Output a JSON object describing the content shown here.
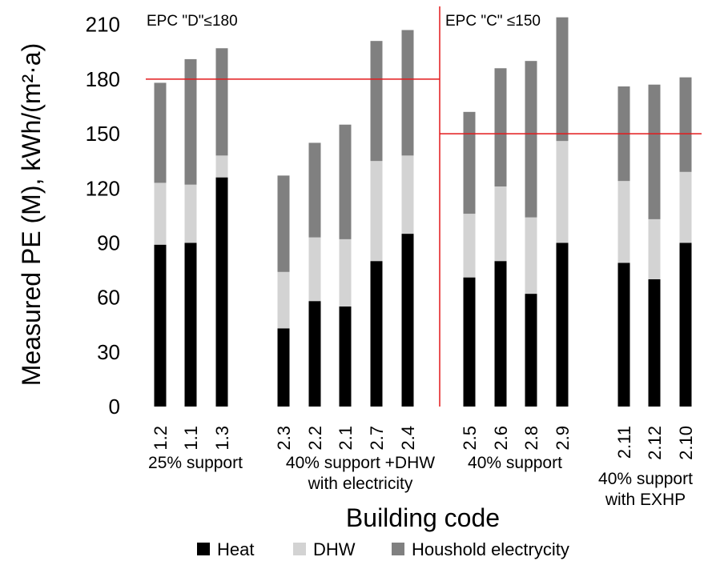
{
  "chart_data": {
    "type": "bar",
    "stacked": true,
    "ylabel": "Measured PE (M), kWh/(m²·a)",
    "xlabel": "Building code",
    "ylim": [
      0,
      210
    ],
    "yticks": [
      0,
      30,
      60,
      90,
      120,
      150,
      180,
      210
    ],
    "grid": false,
    "legend_position": "bottom",
    "categories": [
      "1.2",
      "1.1",
      "1.3",
      "2.3",
      "2.2",
      "2.1",
      "2.7",
      "2.4",
      "2.5",
      "2.6",
      "2.8",
      "2.9",
      "2.11",
      "2.12",
      "2.10"
    ],
    "groups": [
      {
        "label_lines": [
          "25% support"
        ],
        "categories": [
          "1.2",
          "1.1",
          "1.3"
        ]
      },
      {
        "label_lines": [
          "40% support +DHW",
          "with electricity"
        ],
        "categories": [
          "2.3",
          "2.2",
          "2.1",
          "2.7",
          "2.4"
        ]
      },
      {
        "label_lines": [
          "40% support"
        ],
        "categories": [
          "2.5",
          "2.6",
          "2.8",
          "2.9"
        ]
      },
      {
        "label_lines": [
          "40% support",
          "with EXHP"
        ],
        "categories": [
          "2.11",
          "2.12",
          "2.10"
        ]
      }
    ],
    "series": [
      {
        "name": "Heat",
        "color": "#000000",
        "values": [
          89,
          90,
          126,
          43,
          58,
          55,
          80,
          95,
          71,
          80,
          62,
          90,
          79,
          70,
          90
        ]
      },
      {
        "name": "DHW",
        "color": "#d3d3d3",
        "values": [
          34,
          32,
          12,
          31,
          35,
          37,
          55,
          43,
          35,
          41,
          42,
          56,
          45,
          33,
          39
        ]
      },
      {
        "name": "Houshold electrycity",
        "color": "#808080",
        "values": [
          55,
          69,
          59,
          53,
          52,
          63,
          66,
          69,
          56,
          65,
          86,
          68,
          52,
          74,
          52
        ]
      }
    ],
    "annotations": [
      {
        "text": "EPC \"D\"≤180",
        "threshold": 180,
        "applies_to_groups": [
          0,
          1
        ]
      },
      {
        "text": "EPC \"C\" ≤150",
        "threshold": 150,
        "applies_to_groups": [
          2,
          3
        ]
      }
    ],
    "threshold_color": "#e31a1c"
  }
}
